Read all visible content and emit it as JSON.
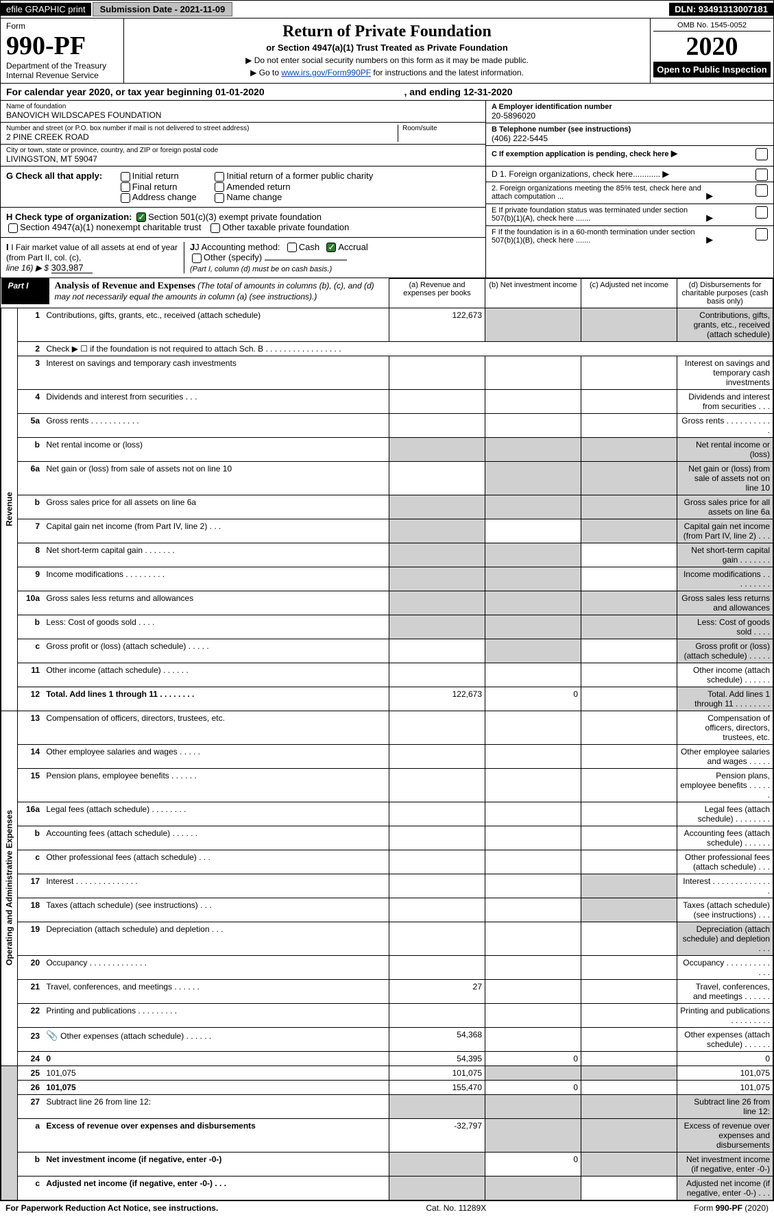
{
  "topbar": {
    "efile": "efile GRAPHIC print",
    "submission_label": "Submission Date - 2021-11-09",
    "dln": "DLN: 93491313007181"
  },
  "header": {
    "form_word": "Form",
    "form_number": "990-PF",
    "dept1": "Department of the Treasury",
    "dept2": "Internal Revenue Service",
    "title": "Return of Private Foundation",
    "subtitle": "or Section 4947(a)(1) Trust Treated as Private Foundation",
    "inst1": "▶ Do not enter social security numbers on this form as it may be made public.",
    "inst2_pre": "▶ Go to ",
    "inst2_link": "www.irs.gov/Form990PF",
    "inst2_post": " for instructions and the latest information.",
    "omb": "OMB No. 1545-0052",
    "year": "2020",
    "open": "Open to Public Inspection"
  },
  "calendar": {
    "text_pre": "For calendar year 2020, or tax year beginning ",
    "begin": "01-01-2020",
    "mid": " , and ending ",
    "end": "12-31-2020"
  },
  "foundation": {
    "name_label": "Name of foundation",
    "name": "BANOVICH WILDSCAPES FOUNDATION",
    "addr_label": "Number and street (or P.O. box number if mail is not delivered to street address)",
    "addr": "2 PINE CREEK ROAD",
    "room_label": "Room/suite",
    "city_label": "City or town, state or province, country, and ZIP or foreign postal code",
    "city": "LIVINGSTON, MT  59047",
    "a_label": "A Employer identification number",
    "a_val": "20-5896020",
    "b_label": "B Telephone number (see instructions)",
    "b_val": "(406) 222-5445",
    "c_label": "C If exemption application is pending, check here",
    "d1_label": "D 1. Foreign organizations, check here............",
    "d2_label": "2. Foreign organizations meeting the 85% test, check here and attach computation ...",
    "e_label": "E If private foundation status was terminated under section 507(b)(1)(A), check here .......",
    "f_label": "F If the foundation is in a 60-month termination under section 507(b)(1)(B), check here .......",
    "g_label": "G Check all that apply:",
    "g_opts": [
      "Initial return",
      "Final return",
      "Address change",
      "Initial return of a former public charity",
      "Amended return",
      "Name change"
    ],
    "h_label": "H Check type of organization:",
    "h_opt1": "Section 501(c)(3) exempt private foundation",
    "h_opt2": "Section 4947(a)(1) nonexempt charitable trust",
    "h_opt3": "Other taxable private foundation",
    "i_label": "I Fair market value of all assets at end of year (from Part II, col. (c),",
    "i_line": "line 16) ▶ $",
    "i_val": "303,987",
    "j_label": "J Accounting method:",
    "j_cash": "Cash",
    "j_accrual": "Accrual",
    "j_other": "Other (specify)",
    "j_note": "(Part I, column (d) must be on cash basis.)"
  },
  "part1": {
    "tag": "Part I",
    "title": "Analysis of Revenue and Expenses",
    "title_note": " (The total of amounts in columns (b), (c), and (d) may not necessarily equal the amounts in column (a) (see instructions).)",
    "col_a": "(a)  Revenue and expenses per books",
    "col_b": "(b)  Net investment income",
    "col_c": "(c)  Adjusted net income",
    "col_d": "(d)  Disbursements for charitable purposes (cash basis only)"
  },
  "sidelabels": {
    "revenue": "Revenue",
    "expenses": "Operating and Administrative Expenses"
  },
  "rows": [
    {
      "n": "1",
      "d": "Contributions, gifts, grants, etc., received (attach schedule)",
      "a": "122,673",
      "gray_b": true,
      "gray_c": true,
      "gray_d": true
    },
    {
      "n": "2",
      "d": "Check ▶ ☐ if the foundation is not required to attach Sch. B   . . . . . . . . . . . . . . . . .",
      "nocols": true
    },
    {
      "n": "3",
      "d": "Interest on savings and temporary cash investments"
    },
    {
      "n": "4",
      "d": "Dividends and interest from securities   .   .   ."
    },
    {
      "n": "5a",
      "d": "Gross rents   .   .   .   .   .   .   .   .   .   .   ."
    },
    {
      "n": "b",
      "d": "Net rental income or (loss)",
      "gray_a": true,
      "gray_b": true,
      "gray_c": true,
      "gray_d": true
    },
    {
      "n": "6a",
      "d": "Net gain or (loss) from sale of assets not on line 10",
      "gray_b": true,
      "gray_c": true,
      "gray_d": true
    },
    {
      "n": "b",
      "d": "Gross sales price for all assets on line 6a",
      "gray_a": true,
      "gray_b": true,
      "gray_c": true,
      "gray_d": true
    },
    {
      "n": "7",
      "d": "Capital gain net income (from Part IV, line 2)   .   .   .",
      "gray_a": true,
      "gray_c": true,
      "gray_d": true
    },
    {
      "n": "8",
      "d": "Net short-term capital gain   .   .   .   .   .   .   .",
      "gray_a": true,
      "gray_b": true,
      "gray_d": true
    },
    {
      "n": "9",
      "d": "Income modifications   .   .   .   .   .   .   .   .   .",
      "gray_a": true,
      "gray_b": true,
      "gray_d": true
    },
    {
      "n": "10a",
      "d": "Gross sales less returns and allowances",
      "gray_a": true,
      "gray_b": true,
      "gray_c": true,
      "gray_d": true
    },
    {
      "n": "b",
      "d": "Less: Cost of goods sold   .   .   .   .",
      "gray_a": true,
      "gray_b": true,
      "gray_c": true,
      "gray_d": true
    },
    {
      "n": "c",
      "d": "Gross profit or (loss) (attach schedule)   .   .   .   .   .",
      "gray_b": true,
      "gray_d": true
    },
    {
      "n": "11",
      "d": "Other income (attach schedule)   .   .   .   .   .   ."
    },
    {
      "n": "12",
      "d": "Total. Add lines 1 through 11   .   .   .   .   .   .   .   .",
      "bold": true,
      "a": "122,673",
      "b": "0",
      "gray_d": true
    },
    {
      "n": "13",
      "d": "Compensation of officers, directors, trustees, etc."
    },
    {
      "n": "14",
      "d": "Other employee salaries and wages   .   .   .   .   ."
    },
    {
      "n": "15",
      "d": "Pension plans, employee benefits   .   .   .   .   .   ."
    },
    {
      "n": "16a",
      "d": "Legal fees (attach schedule)   .   .   .   .   .   .   .   ."
    },
    {
      "n": "b",
      "d": "Accounting fees (attach schedule)   .   .   .   .   .   ."
    },
    {
      "n": "c",
      "d": "Other professional fees (attach schedule)   .   .   ."
    },
    {
      "n": "17",
      "d": "Interest   .   .   .   .   .   .   .   .   .   .   .   .   .   .",
      "gray_c": true
    },
    {
      "n": "18",
      "d": "Taxes (attach schedule) (see instructions)   .   .   .",
      "gray_c": true
    },
    {
      "n": "19",
      "d": "Depreciation (attach schedule) and depletion   .   .   .",
      "gray_d": true
    },
    {
      "n": "20",
      "d": "Occupancy   .   .   .   .   .   .   .   .   .   .   .   .   ."
    },
    {
      "n": "21",
      "d": "Travel, conferences, and meetings   .   .   .   .   .   .",
      "a": "27"
    },
    {
      "n": "22",
      "d": "Printing and publications   .   .   .   .   .   .   .   .   ."
    },
    {
      "n": "23",
      "d": "Other expenses (attach schedule)   .   .   .   .   .   .",
      "icon": true,
      "a": "54,368"
    },
    {
      "n": "24",
      "d": "0",
      "bold": true,
      "a": "54,395",
      "b": "0"
    },
    {
      "n": "25",
      "d": "101,075",
      "a": "101,075",
      "gray_b": true,
      "gray_c": true
    },
    {
      "n": "26",
      "d": "101,075",
      "bold": true,
      "a": "155,470",
      "b": "0"
    },
    {
      "n": "27",
      "d": "Subtract line 26 from line 12:",
      "gray_a": true,
      "gray_b": true,
      "gray_c": true,
      "gray_d": true
    },
    {
      "n": "a",
      "d": "Excess of revenue over expenses and disbursements",
      "bold": true,
      "a": "-32,797",
      "gray_b": true,
      "gray_c": true,
      "gray_d": true
    },
    {
      "n": "b",
      "d": "Net investment income (if negative, enter -0-)",
      "bold": true,
      "gray_a": true,
      "b": "0",
      "gray_c": true,
      "gray_d": true
    },
    {
      "n": "c",
      "d": "Adjusted net income (if negative, enter -0-)   .   .   .",
      "bold": true,
      "gray_a": true,
      "gray_b": true,
      "gray_d": true
    }
  ],
  "footer": {
    "left": "For Paperwork Reduction Act Notice, see instructions.",
    "mid": "Cat. No. 11289X",
    "right": "Form 990-PF (2020)"
  }
}
